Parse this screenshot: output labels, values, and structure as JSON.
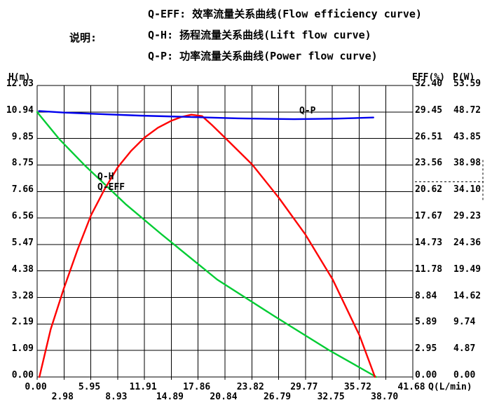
{
  "legend": {
    "prefix": "说明:",
    "items": [
      {
        "key": "Q-EFF",
        "text": "Q-EFF: 效率流量关系曲线(Flow efficiency curve)"
      },
      {
        "key": "Q-H",
        "text": "Q-H: 扬程流量关系曲线(Lift flow curve)"
      },
      {
        "key": "Q-P",
        "text": "Q-P: 功率流量关系曲线(Power flow curve)"
      }
    ]
  },
  "colors": {
    "grid": "#000000",
    "q_h": "#00cc33",
    "q_eff": "#ff0000",
    "q_p": "#0000ee",
    "background": "#ffffff",
    "text": "#000000"
  },
  "chart_data": {
    "type": "line",
    "grid": true,
    "legend_position": "top",
    "x_axis": {
      "unit": "Q(L/min)",
      "range": [
        0,
        41.68
      ],
      "ticks": [
        "0.00",
        "2.98",
        "5.95",
        "8.93",
        "11.91",
        "14.89",
        "17.86",
        "20.84",
        "23.82",
        "26.79",
        "29.77",
        "32.75",
        "35.72",
        "38.70",
        "41.68"
      ]
    },
    "left_axis": {
      "label": "H(m)",
      "range": [
        0,
        12.03
      ],
      "ticks": [
        "12.03",
        "10.94",
        "9.85",
        "8.75",
        "7.66",
        "6.56",
        "5.47",
        "4.38",
        "3.28",
        "2.19",
        "1.09",
        "0.00"
      ]
    },
    "right_axis_eff": {
      "label": "EFF(%)",
      "range": [
        0,
        32.4
      ],
      "ticks": [
        "32.40",
        "29.45",
        "26.51",
        "23.56",
        "20.62",
        "17.67",
        "14.73",
        "11.78",
        "8.84",
        "5.89",
        "2.95",
        "0.00"
      ]
    },
    "right_axis_p": {
      "label": "P(W)",
      "range": [
        0,
        53.59
      ],
      "ticks": [
        "53.59",
        "48.72",
        "43.85",
        "38.98",
        "34.10",
        "29.23",
        "24.36",
        "19.49",
        "14.62",
        "9.74",
        "4.87",
        "0.00"
      ]
    },
    "series": [
      {
        "name": "Q-H",
        "axis": "left",
        "color": "#00cc33",
        "points": [
          [
            0,
            10.93
          ],
          [
            2.5,
            9.8
          ],
          [
            5.21,
            8.76
          ],
          [
            9.88,
            7.11
          ],
          [
            13.76,
            5.9
          ],
          [
            19.98,
            4.02
          ],
          [
            26.2,
            2.54
          ],
          [
            32.42,
            1.1
          ],
          [
            37.63,
            0
          ]
        ]
      },
      {
        "name": "Q-EFF",
        "axis": "eff",
        "color": "#ff0000",
        "points": [
          [
            0.25,
            0
          ],
          [
            1.5,
            5.3
          ],
          [
            2.95,
            9.8
          ],
          [
            4.5,
            14.2
          ],
          [
            5.99,
            18.0
          ],
          [
            7.5,
            20.9
          ],
          [
            8.94,
            23.3
          ],
          [
            10.4,
            25.1
          ],
          [
            11.9,
            26.6
          ],
          [
            13.4,
            27.7
          ],
          [
            14.93,
            28.5
          ],
          [
            16.0,
            28.9
          ],
          [
            17.1,
            29.15
          ],
          [
            18.3,
            29.0
          ],
          [
            19.4,
            28.0
          ],
          [
            20.84,
            26.6
          ],
          [
            23.87,
            23.6
          ],
          [
            26.83,
            19.9
          ],
          [
            29.78,
            15.8
          ],
          [
            32.81,
            10.8
          ],
          [
            35.77,
            4.6
          ],
          [
            37.48,
            0
          ]
        ]
      },
      {
        "name": "Q-P",
        "axis": "p",
        "color": "#0000ee",
        "points": [
          [
            0.2,
            48.9
          ],
          [
            3,
            48.6
          ],
          [
            6,
            48.4
          ],
          [
            11.4,
            48.05
          ],
          [
            16.9,
            47.8
          ],
          [
            22.3,
            47.55
          ],
          [
            28.5,
            47.4
          ],
          [
            33.2,
            47.5
          ],
          [
            37.3,
            47.7
          ]
        ]
      }
    ],
    "marker": {
      "eff_value": 21.7,
      "p_value": 35.8
    }
  }
}
